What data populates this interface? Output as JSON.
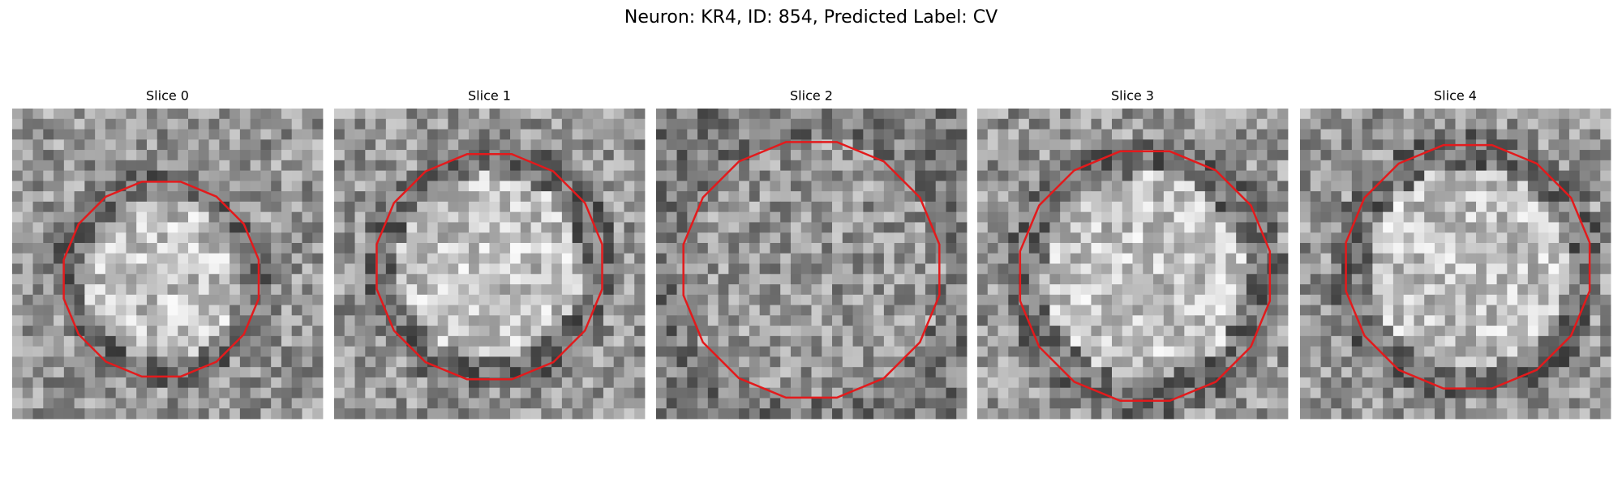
{
  "title": "Neuron: KR4, ID: 854, Predicted Label: CV",
  "panels": [
    {
      "title": "Slice 0"
    },
    {
      "title": "Slice 1"
    },
    {
      "title": "Slice 2"
    },
    {
      "title": "Slice 3"
    },
    {
      "title": "Slice 4"
    }
  ]
}
